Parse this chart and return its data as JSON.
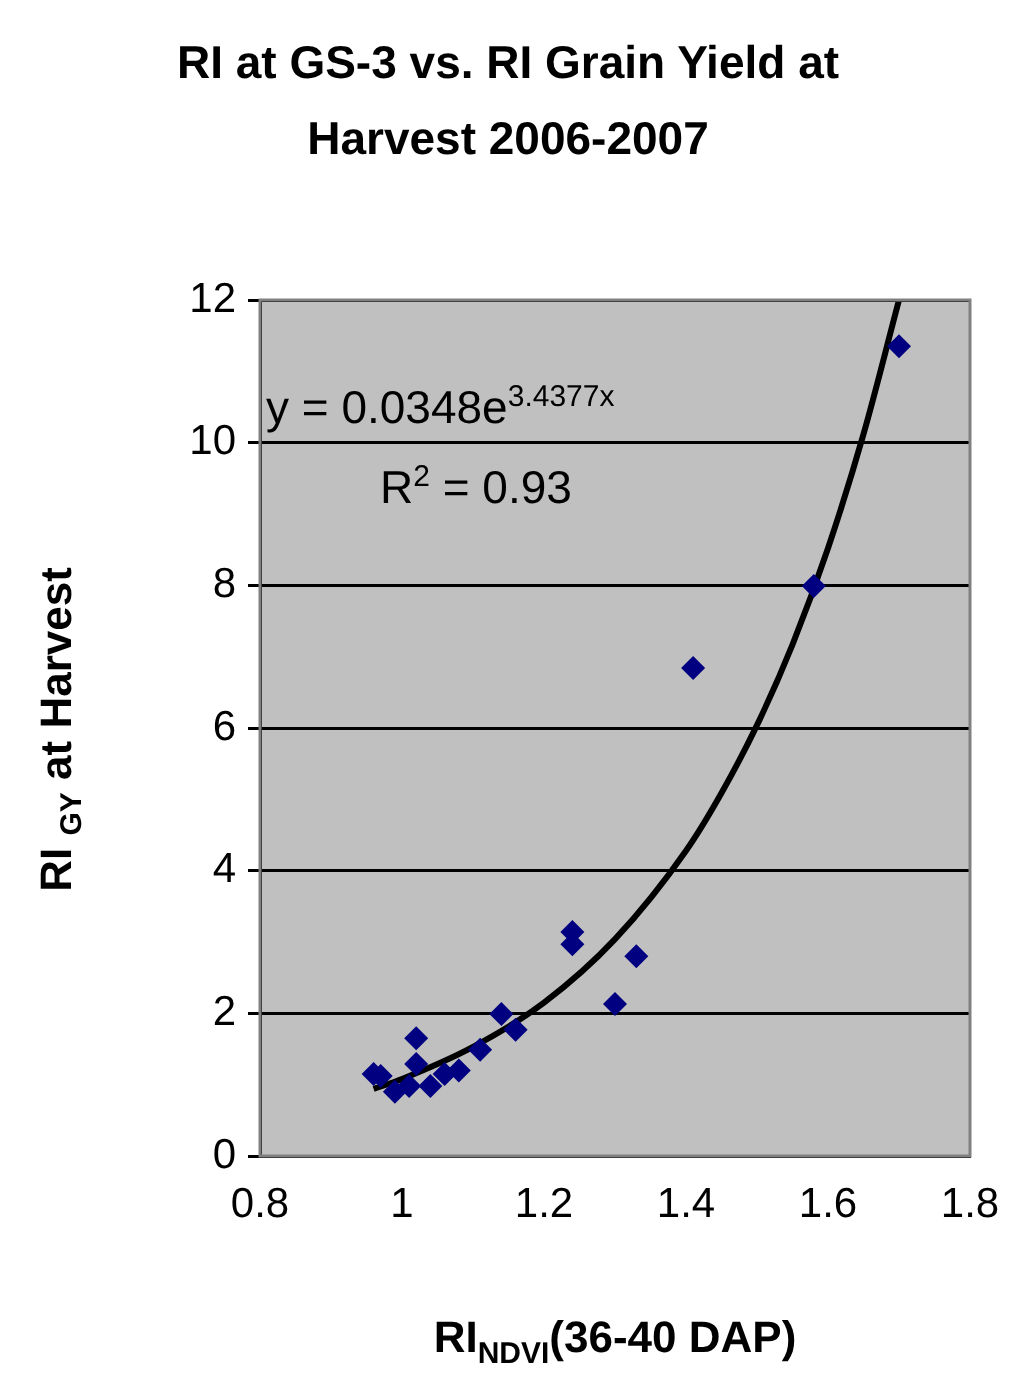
{
  "chart_data": {
    "type": "scatter",
    "title": "RI at GS-3 vs. RI Grain Yield at Harvest 2006-2007",
    "xlabel": "RI$_{NDVI}$(36-40 DAP)",
    "ylabel": "RI $_{GY}$ at Harvest",
    "xlim": [
      0.8,
      1.8
    ],
    "xticks": [
      0.8,
      1,
      1.2,
      1.4,
      1.6,
      1.8
    ],
    "ylim": [
      0,
      12
    ],
    "yticks": [
      0,
      2,
      4,
      6,
      8,
      10,
      12
    ],
    "grid": "y",
    "legend": false,
    "marker": "diamond",
    "annotations": [
      "y = 0.0348e$^{3.4377x}$",
      "R$^{2}$ = 0.93"
    ],
    "series": [
      {
        "type": "scatter",
        "color": "#000080",
        "x": [
          0.96,
          0.97,
          1.02,
          1.02,
          0.99,
          1.01,
          1.04,
          1.06,
          1.08,
          1.11,
          1.14,
          1.16,
          1.24,
          1.24,
          1.3,
          1.33,
          1.41,
          1.58,
          1.7
        ],
        "values": [
          1.15,
          1.12,
          1.65,
          1.29,
          0.9,
          0.98,
          0.98,
          1.15,
          1.2,
          1.49,
          1.99,
          1.77,
          3.14,
          2.97,
          2.13,
          2.8,
          6.84,
          7.99,
          11.35
        ]
      },
      {
        "type": "line",
        "color": "#000000",
        "marker": "none",
        "x": [
          0.96,
          1,
          1.1,
          1.2,
          1.3,
          1.4,
          1.45,
          1.5,
          1.55,
          1.6,
          1.65,
          1.7
        ],
        "values": [
          0.94,
          1.08,
          1.53,
          2.15,
          3.04,
          4.28,
          5.09,
          6.04,
          7.17,
          8.52,
          10.12,
          12.0
        ]
      }
    ]
  }
}
